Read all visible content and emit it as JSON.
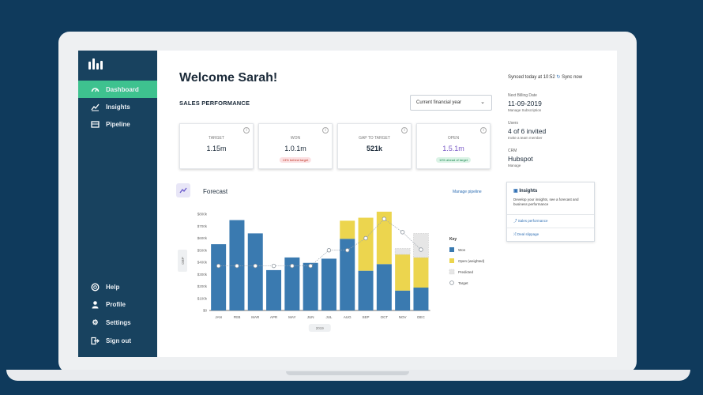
{
  "sidebar": {
    "logo_icon": "bar-chart-logo",
    "nav": [
      {
        "label": "Dashboard",
        "icon": "gauge-icon",
        "active": true
      },
      {
        "label": "Insights",
        "icon": "trend-chart-icon",
        "active": false
      },
      {
        "label": "Pipeline",
        "icon": "board-icon",
        "active": false
      }
    ],
    "bottom": [
      {
        "label": "Help",
        "icon": "lifebuoy-icon"
      },
      {
        "label": "Profile",
        "icon": "user-icon"
      },
      {
        "label": "Settings",
        "icon": "gear-icon"
      },
      {
        "label": "Sign out",
        "icon": "sign-out-icon"
      }
    ]
  },
  "main": {
    "welcome": "Welcome Sarah!",
    "section_title": "SALES PERFORMANCE",
    "period_select": "Current financial year",
    "kpis": [
      {
        "label": "TARGET",
        "value": "1.15m",
        "badge": "",
        "badge_color": ""
      },
      {
        "label": "WON",
        "value": "1.0.1m",
        "badge": "13% behind target",
        "badge_color": "#fbe0e2"
      },
      {
        "label": "GAP TO TARGET",
        "value": "521k",
        "badge": "",
        "badge_color": ""
      },
      {
        "label": "OPEN",
        "value": "1.5.1m",
        "badge": "10% ahead of target",
        "badge_color": "#dbf3e6"
      }
    ],
    "forecast_title": "Forecast",
    "manage_link": "Manage pipeline"
  },
  "chart_data": {
    "type": "bar",
    "categories": [
      "JAN",
      "FEB",
      "MAR",
      "APR",
      "MAY",
      "JUN",
      "JUL",
      "AUG",
      "SEP",
      "OCT",
      "NOV",
      "DEC"
    ],
    "ylabel": "GBP",
    "xlabel": "2019",
    "y_tick_labels": [
      "$0",
      "$100k",
      "$200k",
      "$300k",
      "$400k",
      "$500k",
      "$600k",
      "$700k",
      "$800k"
    ],
    "ylim": [
      0,
      800
    ],
    "series": [
      {
        "name": "Won",
        "color": "#3a7ab0",
        "values": [
          550,
          750,
          640,
          335,
          440,
          395,
          430,
          595,
          330,
          385,
          165,
          190
        ]
      },
      {
        "name": "Open (weighted)",
        "color": "#ecd54e",
        "values": [
          0,
          0,
          0,
          0,
          0,
          0,
          0,
          150,
          440,
          435,
          300,
          250
        ]
      },
      {
        "name": "Predicted",
        "color": "#e6e6e6",
        "values": [
          0,
          0,
          0,
          0,
          0,
          0,
          0,
          0,
          0,
          0,
          50,
          200
        ]
      }
    ],
    "target": [
      370,
      370,
      370,
      370,
      370,
      370,
      500,
      500,
      600,
      760,
      650,
      505
    ],
    "legend_title": "Key",
    "legend_position": "right",
    "grid": false
  },
  "right": {
    "synced": "Synced today at 10:52",
    "sync_now": "Sync now",
    "info": [
      {
        "label": "Next Billing Date",
        "value": "11-09-2019",
        "sub": "Manage Subscription"
      },
      {
        "label": "Users",
        "value": "4 of 6 invited",
        "sub": "Invite a team member"
      },
      {
        "label": "CRM",
        "value": "Hubspot",
        "sub": "Manage"
      }
    ],
    "insights": {
      "title": "Insights",
      "text": "Develop your insights, see a forecast and business performance",
      "link1": "Sales performance",
      "link2": "Deal slippage"
    }
  }
}
